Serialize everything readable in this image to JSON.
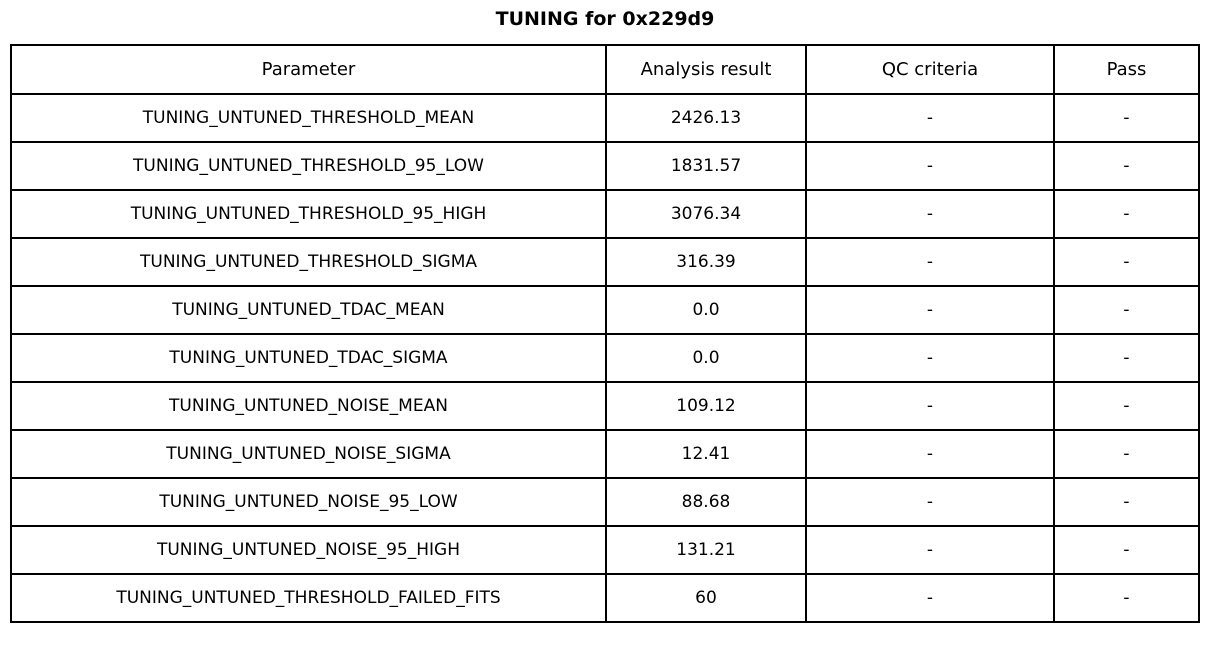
{
  "chart_data": {
    "type": "table",
    "title": "TUNING for 0x229d9",
    "columns": [
      "Parameter",
      "Analysis result",
      "QC criteria",
      "Pass"
    ],
    "rows": [
      [
        "TUNING_UNTUNED_THRESHOLD_MEAN",
        "2426.13",
        "-",
        "-"
      ],
      [
        "TUNING_UNTUNED_THRESHOLD_95_LOW",
        "1831.57",
        "-",
        "-"
      ],
      [
        "TUNING_UNTUNED_THRESHOLD_95_HIGH",
        "3076.34",
        "-",
        "-"
      ],
      [
        "TUNING_UNTUNED_THRESHOLD_SIGMA",
        "316.39",
        "-",
        "-"
      ],
      [
        "TUNING_UNTUNED_TDAC_MEAN",
        "0.0",
        "-",
        "-"
      ],
      [
        "TUNING_UNTUNED_TDAC_SIGMA",
        "0.0",
        "-",
        "-"
      ],
      [
        "TUNING_UNTUNED_NOISE_MEAN",
        "109.12",
        "-",
        "-"
      ],
      [
        "TUNING_UNTUNED_NOISE_SIGMA",
        "12.41",
        "-",
        "-"
      ],
      [
        "TUNING_UNTUNED_NOISE_95_LOW",
        "88.68",
        "-",
        "-"
      ],
      [
        "TUNING_UNTUNED_NOISE_95_HIGH",
        "131.21",
        "-",
        "-"
      ],
      [
        "TUNING_UNTUNED_THRESHOLD_FAILED_FITS",
        "60",
        "-",
        "-"
      ]
    ],
    "layout": {
      "header_row": true,
      "grid": true,
      "cell_alignment": "center"
    }
  },
  "colors": {
    "border": "#000000",
    "background": "#ffffff",
    "text": "#000000"
  }
}
